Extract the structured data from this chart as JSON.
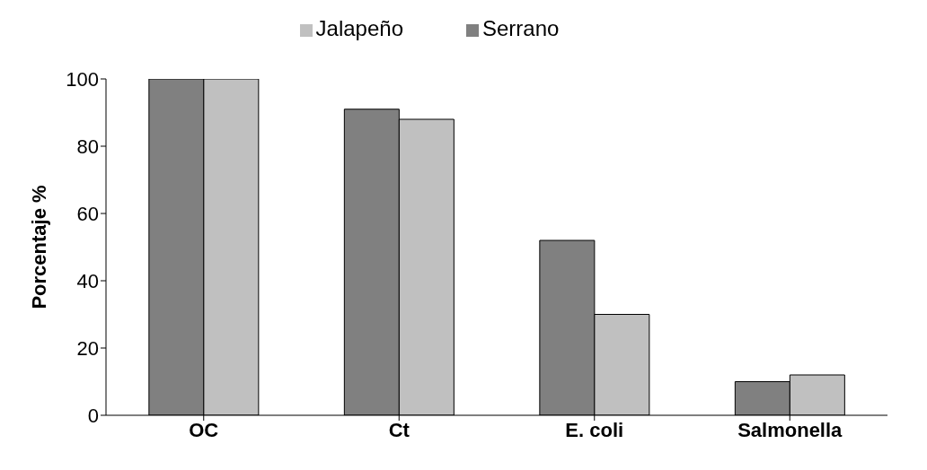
{
  "chart_data": {
    "type": "bar",
    "ylabel": "Porcentaje %",
    "categories": [
      "OC",
      "Ct",
      "E. coli",
      "Salmonella"
    ],
    "series": [
      {
        "name": "Serrano",
        "color": "#808080",
        "values": [
          100,
          91,
          52,
          10
        ]
      },
      {
        "name": "Jalapeño",
        "color": "#c0c0c0",
        "values": [
          100,
          88,
          30,
          12
        ]
      }
    ],
    "ylim": [
      0,
      100
    ],
    "yticks": [
      0,
      20,
      40,
      60,
      80,
      100
    ],
    "legend": "top"
  }
}
